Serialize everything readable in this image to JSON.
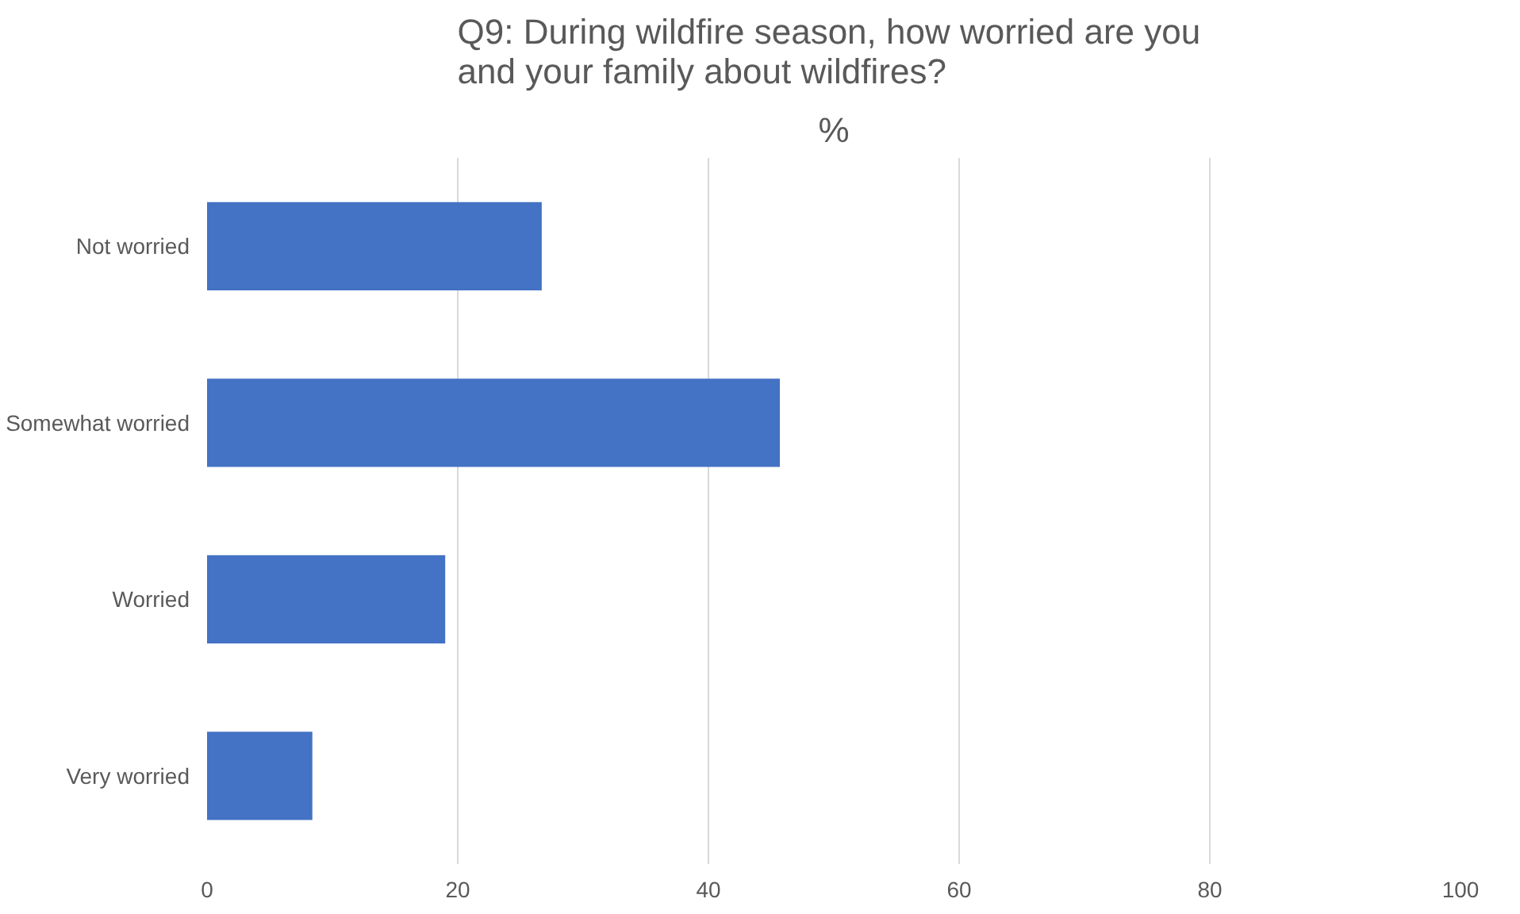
{
  "chart_data": {
    "type": "bar",
    "orientation": "horizontal",
    "title": "Q9:  During wildfire season, how worried are you and your family about wildfires?",
    "subtitle": "%",
    "categories": [
      "Not worried",
      "Somewhat worried",
      "Worried",
      "Very worried"
    ],
    "values": [
      26.7,
      45.7,
      19.0,
      8.4
    ],
    "color": "#4472c4",
    "xlim": [
      0,
      100
    ],
    "xticks": [
      0,
      20,
      40,
      60,
      80,
      100
    ],
    "grid": "x"
  }
}
